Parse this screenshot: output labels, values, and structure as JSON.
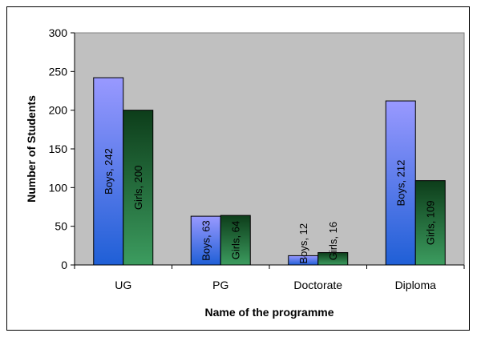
{
  "chart_data": {
    "type": "bar",
    "categories": [
      "UG",
      "PG",
      "Doctorate",
      "Diploma"
    ],
    "series": [
      {
        "name": "Boys",
        "values": [
          242,
          63,
          12,
          212
        ]
      },
      {
        "name": "Girls",
        "values": [
          200,
          64,
          16,
          109
        ]
      }
    ],
    "data_labels": [
      [
        "Boys, 242",
        "Boys, 63",
        "Boys, 12",
        "Boys, 212"
      ],
      [
        "Girls, 200",
        "Girls, 64",
        "Girls, 16",
        "Girls, 109"
      ]
    ],
    "xlabel": "Name of the programme",
    "ylabel": "Number of Students",
    "ylim": [
      0,
      300
    ],
    "yticks": [
      "0",
      "50",
      "100",
      "150",
      "200",
      "250",
      "300"
    ],
    "grid": false,
    "legend": "none",
    "colors": {
      "plot_background": "#c0c0c0",
      "boys_top": "#9999ff",
      "boys_bottom": "#1f5fd6",
      "girls_top": "#0d3d1a",
      "girls_bottom": "#3c9c5f"
    }
  }
}
